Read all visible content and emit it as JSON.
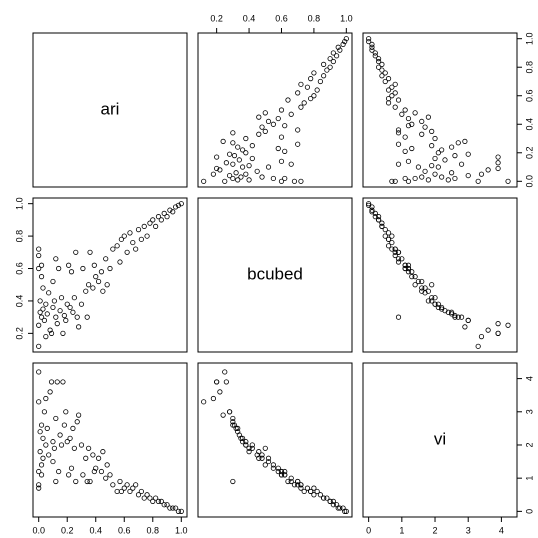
{
  "chart_data": {
    "type": "pairs",
    "variables": [
      {
        "name": "ari",
        "lim": [
          -0.04,
          1.04
        ],
        "ticks": [
          {
            "value": 0,
            "label": "0.0"
          },
          0.2,
          0.4,
          0.6,
          0.8,
          {
            "value": 1,
            "label": "1.0"
          }
        ],
        "values": [
          0.0,
          0.0,
          0.01,
          0.0,
          0.02,
          0.0,
          0.01,
          0.03,
          0.02,
          0.0,
          0.04,
          0.05,
          0.06,
          0.02,
          0.07,
          0.08,
          0.1,
          0.12,
          0.11,
          0.13,
          0.15,
          0.14,
          0.16,
          0.18,
          0.2,
          0.19,
          0.22,
          0.21,
          0.24,
          0.25,
          0.27,
          0.26,
          0.3,
          0.28,
          0.09,
          0.05,
          0.33,
          0.35,
          0.36,
          0.38,
          0.4,
          0.42,
          0.39,
          0.44,
          0.45,
          0.34,
          0.47,
          0.5,
          0.52,
          0.48,
          0.55,
          0.58,
          0.57,
          0.6,
          0.62,
          0.64,
          0.66,
          0.68,
          0.7,
          0.72,
          0.74,
          0.76,
          0.78,
          0.8,
          0.82,
          0.84,
          0.86,
          0.88,
          0.9,
          0.92,
          0.94,
          0.96,
          0.98,
          1.0,
          0.17,
          0.1,
          0.23,
          0.31,
          0.03,
          0.12
        ]
      },
      {
        "name": "bcubed",
        "lim": [
          0.085,
          1.035
        ],
        "ticks": [
          0.2,
          0.4,
          0.6,
          0.8,
          {
            "value": 1,
            "label": "1.0"
          }
        ],
        "values": [
          0.6,
          0.72,
          0.33,
          0.12,
          0.3,
          0.68,
          0.4,
          0.35,
          0.55,
          0.25,
          0.28,
          0.38,
          0.32,
          0.62,
          0.45,
          0.22,
          0.36,
          0.3,
          0.4,
          0.26,
          0.34,
          0.6,
          0.42,
          0.31,
          0.38,
          0.28,
          0.36,
          0.62,
          0.33,
          0.42,
          0.3,
          0.7,
          0.38,
          0.24,
          0.2,
          0.18,
          0.46,
          0.5,
          0.7,
          0.48,
          0.55,
          0.52,
          0.62,
          0.58,
          0.46,
          0.3,
          0.66,
          0.6,
          0.72,
          0.5,
          0.74,
          0.78,
          0.64,
          0.8,
          0.7,
          0.82,
          0.76,
          0.72,
          0.84,
          0.78,
          0.86,
          0.8,
          0.88,
          0.9,
          0.86,
          0.92,
          0.9,
          0.94,
          0.92,
          0.96,
          0.95,
          0.98,
          0.99,
          1.0,
          0.2,
          0.52,
          0.58,
          0.6,
          0.48,
          0.66
        ]
      },
      {
        "name": "vi",
        "lim": [
          -0.17,
          4.47
        ],
        "ticks": [
          0,
          1,
          2,
          3,
          4
        ],
        "values": [
          1.2,
          0.7,
          2.4,
          3.3,
          2.6,
          0.8,
          1.8,
          2.2,
          1.4,
          4.2,
          3.0,
          2.0,
          2.5,
          1.1,
          1.7,
          3.6,
          2.1,
          2.8,
          1.9,
          3.9,
          2.3,
          1.2,
          2.0,
          2.6,
          2.1,
          3.0,
          2.2,
          1.1,
          2.5,
          1.9,
          2.7,
          0.9,
          2.0,
          2.9,
          3.9,
          3.4,
          1.6,
          1.9,
          0.9,
          1.7,
          1.3,
          1.6,
          1.2,
          1.2,
          1.8,
          0.9,
          1.0,
          1.1,
          0.8,
          1.4,
          0.6,
          0.6,
          0.9,
          0.7,
          0.8,
          0.6,
          0.7,
          0.8,
          0.5,
          0.6,
          0.4,
          0.5,
          0.4,
          0.3,
          0.4,
          0.3,
          0.3,
          0.2,
          0.2,
          0.1,
          0.1,
          0.1,
          0.0,
          0.0,
          3.9,
          1.5,
          1.3,
          1.1,
          1.6,
          0.9
        ]
      }
    ]
  }
}
